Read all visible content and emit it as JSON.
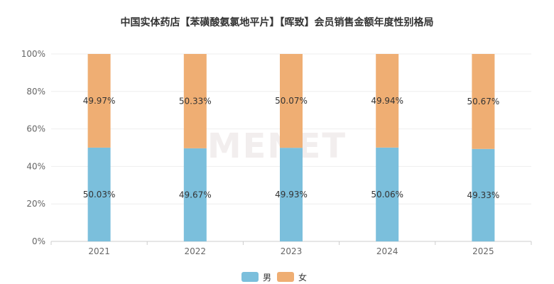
{
  "chart_data": {
    "type": "bar",
    "stacked": true,
    "title": "中国实体药店【苯磺酸氨氯地平片】【晖致】会员销售金额年度性别格局",
    "categories": [
      "2021",
      "2022",
      "2023",
      "2024",
      "2025"
    ],
    "series": [
      {
        "name": "男",
        "color": "#7bbfdc",
        "values": [
          50.03,
          49.67,
          49.93,
          50.06,
          49.33
        ]
      },
      {
        "name": "女",
        "color": "#efae73",
        "values": [
          49.97,
          50.33,
          50.07,
          49.94,
          50.67
        ]
      }
    ],
    "ylim": [
      0,
      100
    ],
    "yticks": [
      "0%",
      "20%",
      "40%",
      "60%",
      "80%",
      "100%"
    ],
    "grid": true,
    "legend_position": "bottom-center",
    "value_suffix": "%"
  },
  "watermark": "MENET"
}
